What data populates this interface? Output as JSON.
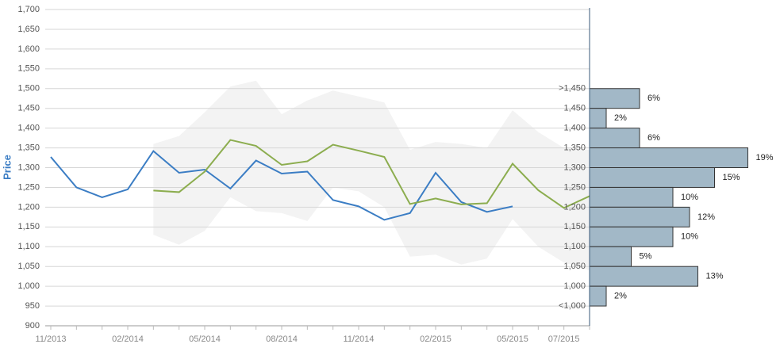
{
  "chart_data": [
    {
      "type": "line",
      "y_label": "Price",
      "categories": [
        "11/2013",
        null,
        null,
        "02/2014",
        null,
        null,
        "05/2014",
        null,
        null,
        "08/2014",
        null,
        null,
        "11/2014",
        null,
        null,
        "02/2015",
        null,
        null,
        "05/2015",
        null,
        "07/2015",
        null
      ],
      "series": [
        {
          "color": "#3b7dc4",
          "values": [
            1327,
            1250,
            1225,
            1245,
            1342,
            1287,
            1295,
            1247,
            1318,
            1285,
            1290,
            1218,
            1202,
            1168,
            1185,
            1287,
            1213,
            1188,
            1202,
            null,
            null,
            null
          ]
        },
        {
          "color": "#8cad4f",
          "values": [
            null,
            null,
            null,
            null,
            1242,
            1238,
            1290,
            1370,
            1355,
            1307,
            1316,
            1358,
            1343,
            1327,
            1208,
            1222,
            1207,
            1210,
            1310,
            1243,
            1198,
            1228
          ]
        }
      ],
      "band": {
        "color": "#f3f3f3",
        "upper": [
          null,
          null,
          null,
          null,
          1360,
          1380,
          1440,
          1505,
          1520,
          1435,
          1470,
          1495,
          1480,
          1465,
          1345,
          1365,
          1360,
          1350,
          1445,
          1390,
          1350,
          1345
        ],
        "lower": [
          null,
          null,
          null,
          null,
          1130,
          1105,
          1140,
          1225,
          1190,
          1185,
          1165,
          1250,
          1240,
          1200,
          1075,
          1080,
          1055,
          1070,
          1170,
          1100,
          1060,
          1040
        ]
      },
      "ylim": [
        900,
        1700
      ],
      "yticks": [
        900,
        950,
        {
          "value": 1000,
          "label": "1,000"
        },
        {
          "value": 1050,
          "label": "1,050"
        },
        {
          "value": 1100,
          "label": "1,100"
        },
        {
          "value": 1150,
          "label": "1,150"
        },
        {
          "value": 1200,
          "label": "1,200"
        },
        {
          "value": 1250,
          "label": "1,250"
        },
        {
          "value": 1300,
          "label": "1,300"
        },
        {
          "value": 1350,
          "label": "1,350"
        },
        {
          "value": 1400,
          "label": "1,400"
        },
        {
          "value": 1450,
          "label": "1,450"
        },
        {
          "value": 1500,
          "label": "1,500"
        },
        {
          "value": 1550,
          "label": "1,550"
        },
        {
          "value": 1600,
          "label": "1,600"
        },
        {
          "value": 1650,
          "label": "1,650"
        },
        {
          "value": 1700,
          "label": "1,700"
        }
      ],
      "grid": true
    },
    {
      "type": "histogram",
      "orientation": "horizontal",
      "color": "#a2b8c7",
      "bins": [
        {
          "value": 1500,
          "label": ">1,450"
        },
        {
          "value": 1450,
          "label": "1,450"
        },
        {
          "value": 1400,
          "label": "1,400"
        },
        {
          "value": 1350,
          "label": "1,350"
        },
        {
          "value": 1300,
          "label": "1,300"
        },
        {
          "value": 1250,
          "label": "1,250"
        },
        {
          "value": 1200,
          "label": "1,200"
        },
        {
          "value": 1150,
          "label": "1,150"
        },
        {
          "value": 1100,
          "label": "1,100"
        },
        {
          "value": 1050,
          "label": "1,050"
        },
        {
          "value": 1000,
          "label": "1,000"
        },
        {
          "value": 950,
          "label": "<1,000"
        }
      ],
      "values": [
        6,
        2,
        6,
        19,
        15,
        10,
        12,
        10,
        5,
        13,
        2
      ],
      "value_labels": [
        "6%",
        "2%",
        "6%",
        "19%",
        "15%",
        "10%",
        "12%",
        "10%",
        "5%",
        "13%",
        "2%"
      ],
      "xlim": [
        0,
        20
      ]
    }
  ]
}
